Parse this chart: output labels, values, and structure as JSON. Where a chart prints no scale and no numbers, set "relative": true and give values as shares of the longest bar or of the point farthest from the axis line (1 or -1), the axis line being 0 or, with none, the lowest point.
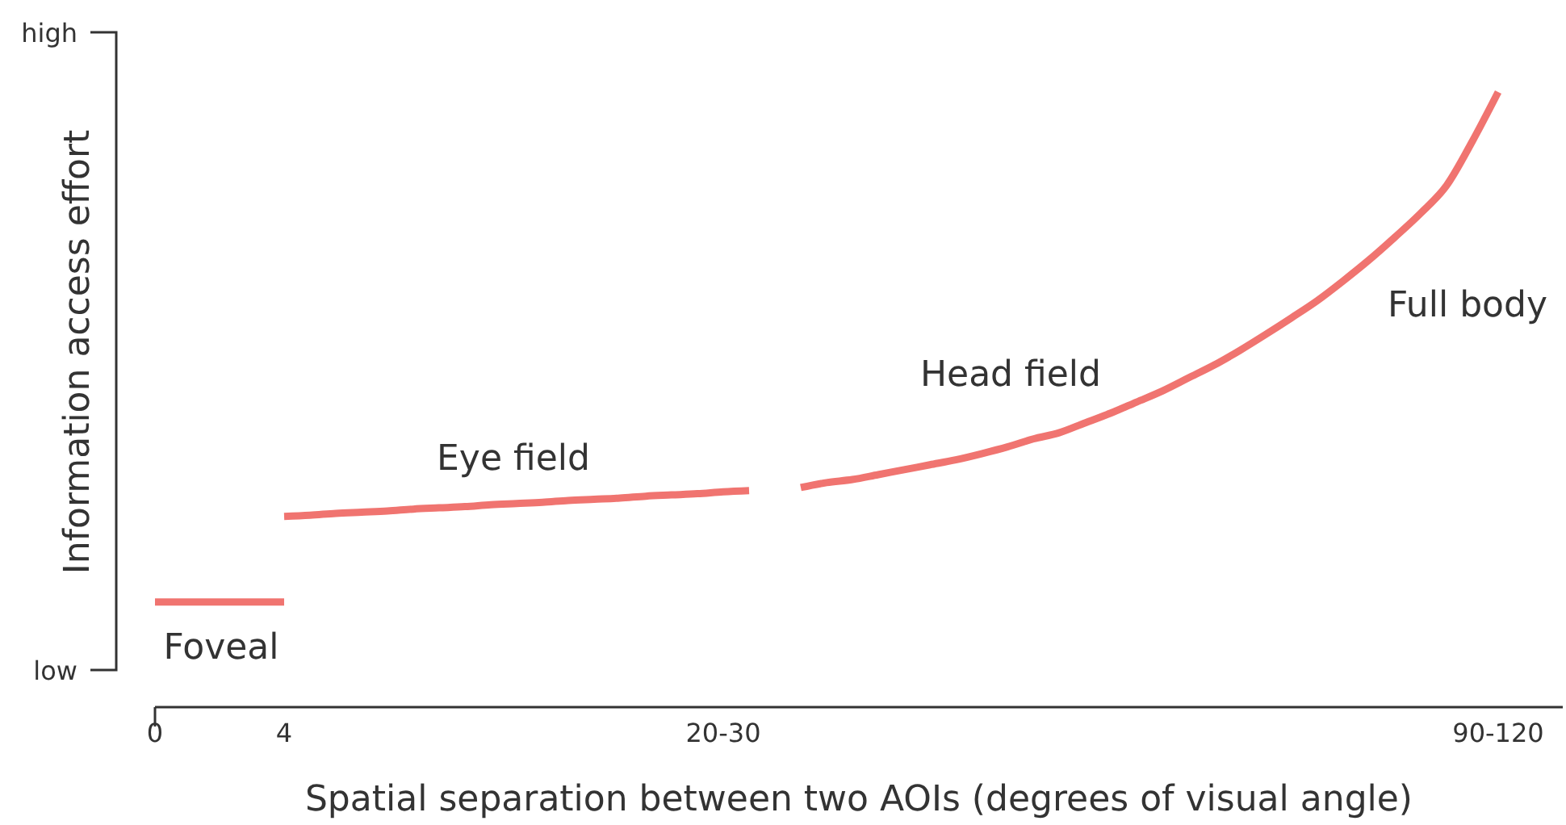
{
  "chart_data": {
    "type": "line",
    "relative": true,
    "xlabel": "Spatial separation between two AOIs (degrees of visual angle)",
    "ylabel": "Information access effort",
    "categories": [
      "0",
      null,
      null,
      null,
      null,
      "4",
      null,
      null,
      null,
      null,
      null,
      null,
      null,
      null,
      null,
      null,
      null,
      null,
      null,
      null,
      null,
      null,
      "20-30",
      null,
      null,
      null,
      null,
      null,
      null,
      null,
      null,
      null,
      null,
      null,
      null,
      null,
      null,
      null,
      null,
      null,
      null,
      null,
      null,
      null,
      null,
      null,
      null,
      null,
      null,
      null,
      null,
      null,
      "90-120",
      null,
      null
    ],
    "series": [
      {
        "color": "#f07470",
        "values": [
          0.171,
          0.171,
          0.171,
          0.171,
          0.171,
          0.171,
          null,
          null,
          null,
          null,
          null,
          null,
          null,
          null,
          null,
          null,
          null,
          null,
          null,
          null,
          null,
          null,
          null,
          null,
          null,
          null,
          null,
          null,
          null,
          null,
          null,
          null,
          null,
          null,
          null,
          null,
          null,
          null,
          null,
          null,
          null,
          null,
          null,
          null,
          null,
          null,
          null,
          null,
          null,
          null,
          null,
          null,
          null,
          null,
          null
        ]
      },
      {
        "color": "#f07470",
        "values": [
          null,
          null,
          null,
          null,
          null,
          0.31,
          0.312,
          0.315,
          0.317,
          0.319,
          0.322,
          0.324,
          0.326,
          0.329,
          0.331,
          0.333,
          0.336,
          0.338,
          0.34,
          0.343,
          0.345,
          0.347,
          0.35,
          0.352,
          null,
          null,
          null,
          null,
          null,
          null,
          null,
          null,
          null,
          null,
          null,
          null,
          null,
          null,
          null,
          null,
          null,
          null,
          null,
          null,
          null,
          null,
          null,
          null,
          null,
          null,
          null,
          null,
          null,
          null,
          null
        ]
      },
      {
        "color": "#f07470",
        "values": [
          null,
          null,
          null,
          null,
          null,
          null,
          null,
          null,
          null,
          null,
          null,
          null,
          null,
          null,
          null,
          null,
          null,
          null,
          null,
          null,
          null,
          null,
          null,
          null,
          null,
          0.357,
          0.365,
          0.37,
          0.378,
          0.386,
          0.394,
          0.402,
          0.412,
          0.423,
          0.436,
          0.446,
          0.462,
          0.478,
          0.496,
          0.514,
          0.535,
          0.556,
          0.58,
          0.606,
          0.633,
          0.661,
          0.693,
          0.727,
          0.764,
          0.803,
          0.848,
          0.92,
          1,
          null,
          null
        ]
      }
    ],
    "annotations": [
      "low",
      "high",
      "Foveal",
      "Eye field",
      "Head field",
      "Full body"
    ],
    "grid": false
  }
}
